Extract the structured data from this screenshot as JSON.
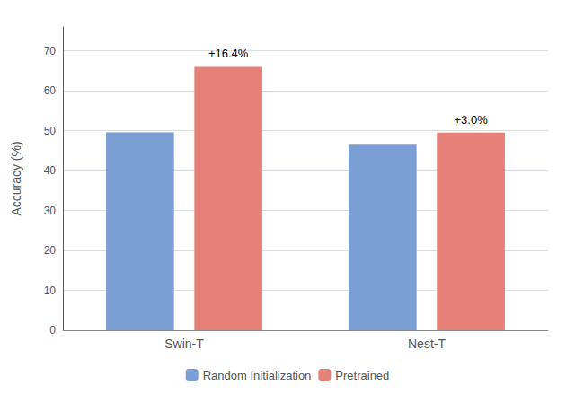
{
  "chart_data": {
    "type": "bar",
    "categories": [
      "Swin-T",
      "Nest-T"
    ],
    "series": [
      {
        "name": "Random Initialization",
        "color": "#7b9fd4",
        "values": [
          49.6,
          46.5
        ]
      },
      {
        "name": "Pretrained",
        "color": "#e8807a",
        "values": [
          66.0,
          49.5
        ]
      }
    ],
    "annotations": [
      "+16.4%",
      "+3.0%"
    ],
    "ylabel": "Accuracy (%)",
    "ylim": [
      0,
      76
    ],
    "yticks": [
      0,
      10,
      20,
      30,
      40,
      50,
      60,
      70
    ],
    "grid": true,
    "legend": "bottom"
  }
}
